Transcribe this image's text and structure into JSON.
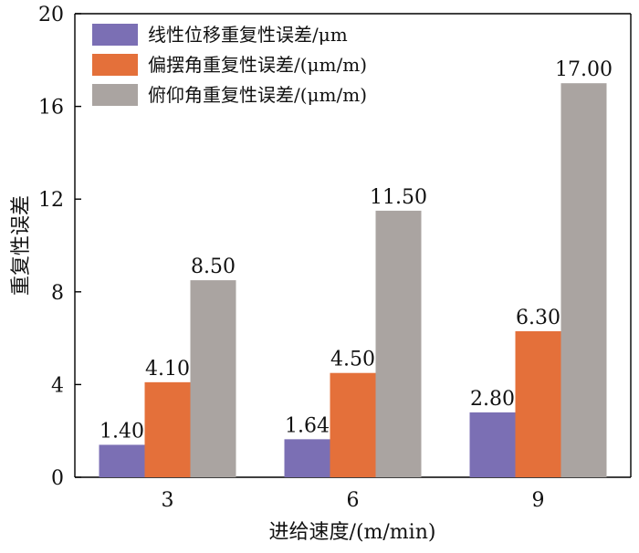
{
  "chart_data": {
    "type": "bar",
    "title": "",
    "xlabel": "进给速度/(m/min)",
    "ylabel": "重复性误差",
    "categories": [
      "3",
      "6",
      "9"
    ],
    "ylim": [
      0,
      20
    ],
    "yticks": [
      "0",
      "4",
      "8",
      "12",
      "16",
      "20"
    ],
    "grid": false,
    "legend_position": "top-left",
    "series": [
      {
        "name": "线性位移重复性误差/μm",
        "color": "#7b6fb4",
        "values": [
          1.4,
          1.64,
          2.8
        ],
        "labels": [
          "1.40",
          "1.64",
          "2.80"
        ]
      },
      {
        "name": "偏摆角重复性误差/(μm/m)",
        "color": "#e4703a",
        "values": [
          4.1,
          4.5,
          6.3
        ],
        "labels": [
          "4.10",
          "4.50",
          "6.30"
        ]
      },
      {
        "name": "俯仰角重复性误差/(μm/m)",
        "color": "#aaa4a1",
        "values": [
          8.5,
          11.5,
          17.0
        ],
        "labels": [
          "8.50",
          "11.50",
          "17.00"
        ]
      }
    ]
  }
}
